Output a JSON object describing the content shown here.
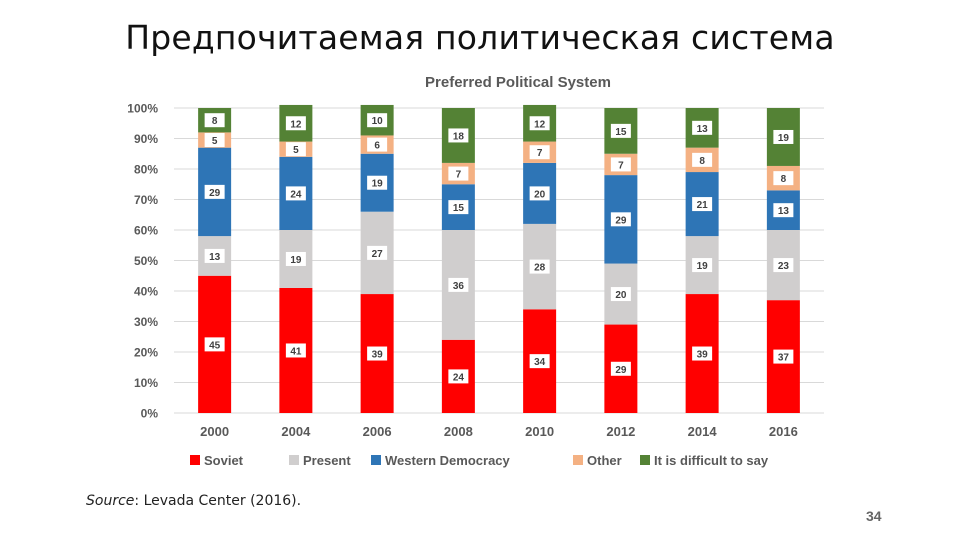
{
  "slide": {
    "title": "Предпочитаемая политическая система",
    "source_label": "Source",
    "source_text": ": Levada Center (2016).",
    "page_number": "34"
  },
  "chart_data": {
    "type": "bar",
    "stacked": true,
    "title": "Preferred Political System",
    "xlabel": "",
    "ylabel": "",
    "ylim": [
      0,
      100
    ],
    "y_ticks": [
      "0%",
      "10%",
      "20%",
      "30%",
      "40%",
      "50%",
      "60%",
      "70%",
      "80%",
      "90%",
      "100%"
    ],
    "categories": [
      "2000",
      "2004",
      "2006",
      "2008",
      "2010",
      "2012",
      "2014",
      "2016"
    ],
    "series": [
      {
        "name": "Soviet",
        "color": "#ff0000",
        "values": [
          45,
          41,
          39,
          24,
          34,
          29,
          39,
          37
        ]
      },
      {
        "name": "Present",
        "color": "#d0cece",
        "values": [
          13,
          19,
          27,
          36,
          28,
          20,
          19,
          23
        ]
      },
      {
        "name": "Western Democracy",
        "color": "#2e75b6",
        "values": [
          29,
          24,
          19,
          15,
          20,
          29,
          21,
          13
        ]
      },
      {
        "name": "Other",
        "color": "#f4b183",
        "values": [
          5,
          5,
          6,
          7,
          7,
          7,
          8,
          8
        ]
      },
      {
        "name": "It is difficult to say",
        "color": "#548235",
        "values": [
          8,
          12,
          10,
          18,
          12,
          15,
          13,
          19
        ]
      }
    ],
    "grid": true,
    "legend_position": "bottom"
  }
}
